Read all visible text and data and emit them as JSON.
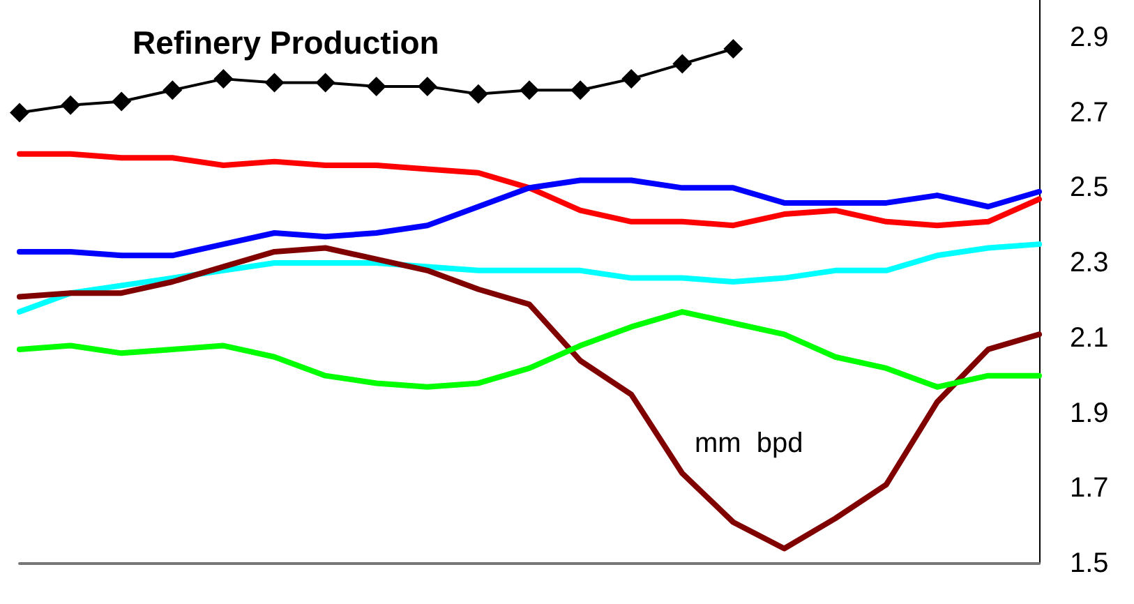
{
  "chart_data": {
    "type": "line",
    "title": "Refinery Production",
    "annotations": [
      "mm  bpd"
    ],
    "categories": [
      null,
      null,
      null,
      null,
      null,
      null,
      null,
      null,
      null,
      null,
      null,
      null,
      null,
      null,
      null,
      null,
      null,
      null,
      null,
      null,
      null
    ],
    "series": [
      {
        "color": "#000000",
        "marker": "diamond",
        "values": [
          2.7,
          2.72,
          2.73,
          2.76,
          2.79,
          2.78,
          2.78,
          2.77,
          2.77,
          2.75,
          2.76,
          2.76,
          2.79,
          2.83,
          2.87,
          null,
          null,
          null,
          null,
          null,
          null
        ]
      },
      {
        "color": "#ff0000",
        "values": [
          2.59,
          2.59,
          2.58,
          2.58,
          2.56,
          2.57,
          2.56,
          2.56,
          2.55,
          2.54,
          2.5,
          2.44,
          2.41,
          2.41,
          2.4,
          2.43,
          2.44,
          2.41,
          2.4,
          2.41,
          2.47
        ]
      },
      {
        "color": "#0000ff",
        "values": [
          2.33,
          2.33,
          2.32,
          2.32,
          2.35,
          2.38,
          2.37,
          2.38,
          2.4,
          2.45,
          2.5,
          2.52,
          2.52,
          2.5,
          2.5,
          2.46,
          2.46,
          2.46,
          2.48,
          2.45,
          2.49
        ]
      },
      {
        "color": "#00ffff",
        "values": [
          2.17,
          2.22,
          2.24,
          2.26,
          2.28,
          2.3,
          2.3,
          2.3,
          2.29,
          2.28,
          2.28,
          2.28,
          2.26,
          2.26,
          2.25,
          2.26,
          2.28,
          2.28,
          2.32,
          2.34,
          2.35
        ]
      },
      {
        "color": "#800000",
        "values": [
          2.21,
          2.22,
          2.22,
          2.25,
          2.29,
          2.33,
          2.34,
          2.31,
          2.28,
          2.23,
          2.19,
          2.04,
          1.95,
          1.74,
          1.61,
          1.54,
          1.62,
          1.71,
          1.93,
          2.07,
          2.11
        ]
      },
      {
        "color": "#00ff00",
        "values": [
          2.07,
          2.08,
          2.06,
          2.07,
          2.08,
          2.05,
          2.0,
          1.98,
          1.97,
          1.98,
          2.02,
          2.08,
          2.13,
          2.17,
          2.14,
          2.11,
          2.05,
          2.02,
          1.97,
          2.0,
          2.0
        ]
      }
    ],
    "ylim": [
      1.5,
      3.0
    ],
    "yticks": [
      1.5,
      1.7,
      1.9,
      2.1,
      2.3,
      2.5,
      2.7,
      2.9
    ],
    "tick_labels": "y",
    "grid": false,
    "marker": "none",
    "line_style": "solid"
  }
}
